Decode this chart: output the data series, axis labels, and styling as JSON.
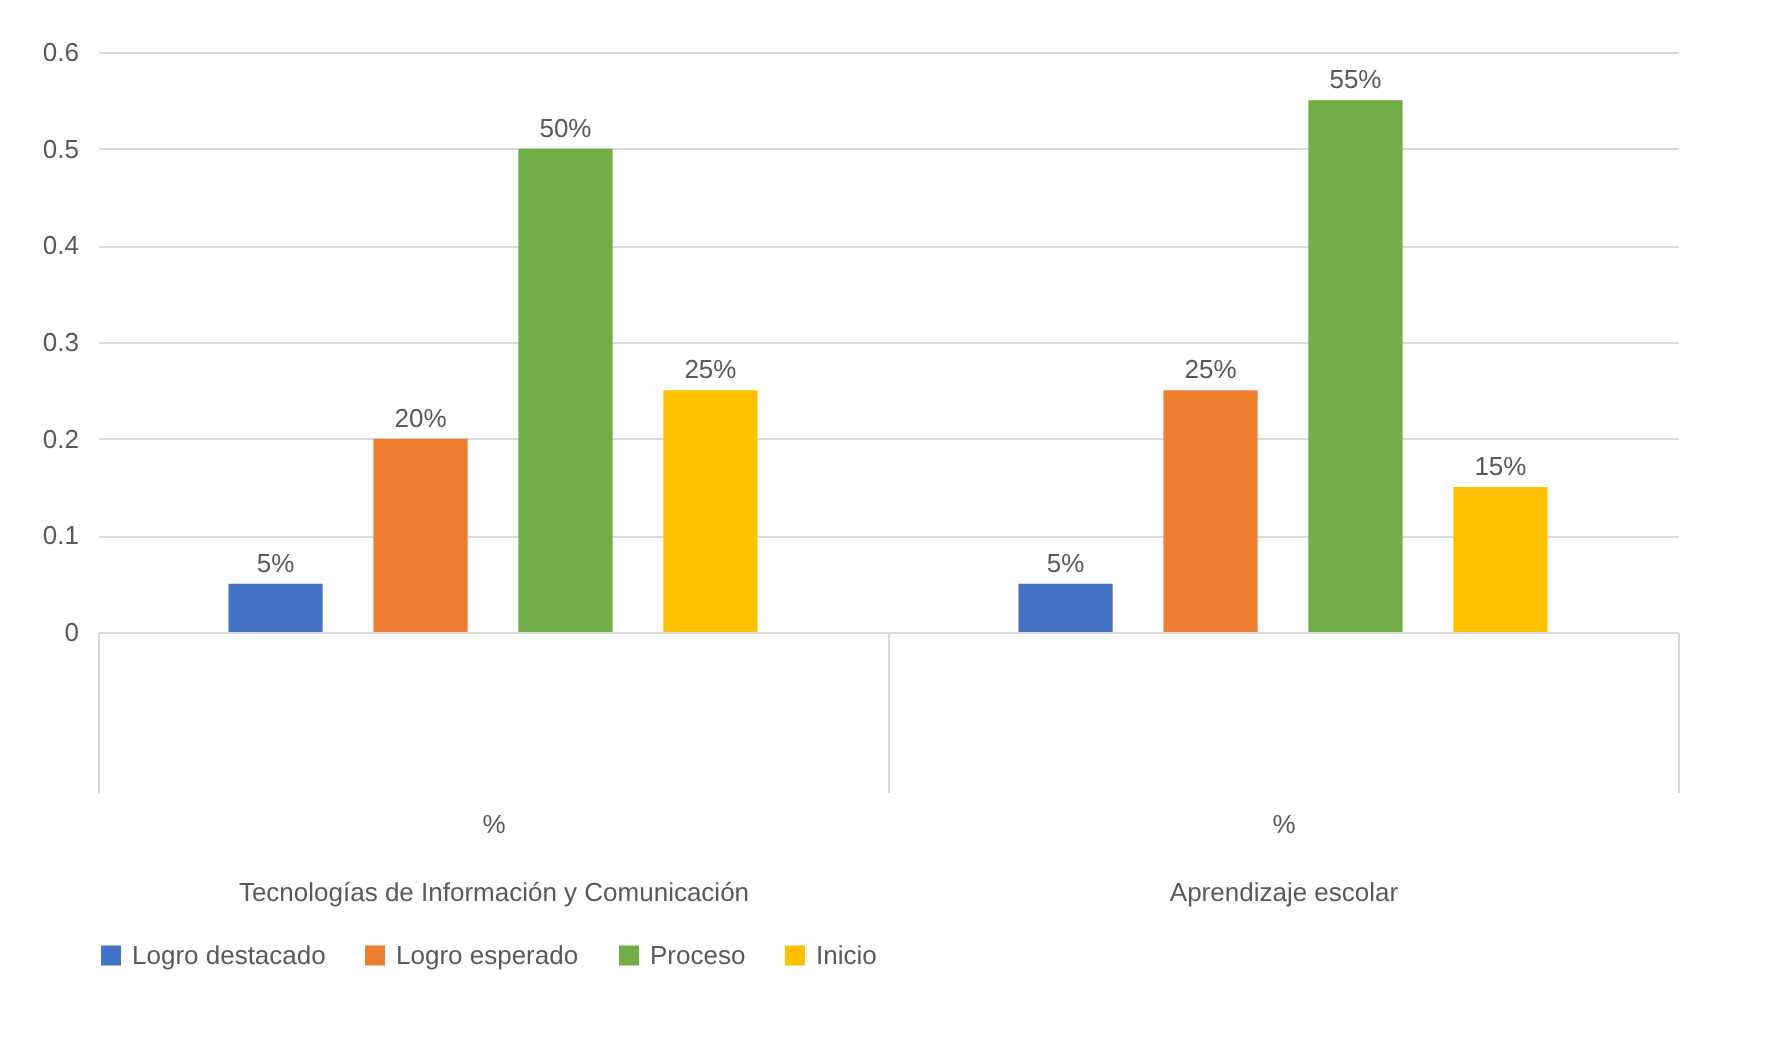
{
  "chart_data": {
    "type": "bar",
    "categories": [
      "%\nTecnologías de Información y Comunicación",
      "%\nAprendizaje escolar"
    ],
    "series": [
      {
        "name": "Logro destacado",
        "color": "#4472c4",
        "values": [
          0.05,
          0.05
        ],
        "value_labels": [
          "5%",
          "5%"
        ]
      },
      {
        "name": "Logro esperado",
        "color": "#ed7d31",
        "values": [
          0.2,
          0.25
        ],
        "value_labels": [
          "20%",
          "25%"
        ]
      },
      {
        "name": "Proceso",
        "color": "#70ad47",
        "values": [
          0.5,
          0.55
        ],
        "value_labels": [
          "50%",
          "55%"
        ]
      },
      {
        "name": "Inicio",
        "color": "#ffc000",
        "values": [
          0.25,
          0.15
        ],
        "value_labels": [
          "25%",
          "15%"
        ]
      }
    ],
    "ylim": [
      0,
      0.6
    ],
    "yticks": [
      0,
      0.1,
      0.2,
      0.3,
      0.4,
      0.5,
      0.6
    ],
    "grid": "y",
    "legend": "bottom"
  }
}
